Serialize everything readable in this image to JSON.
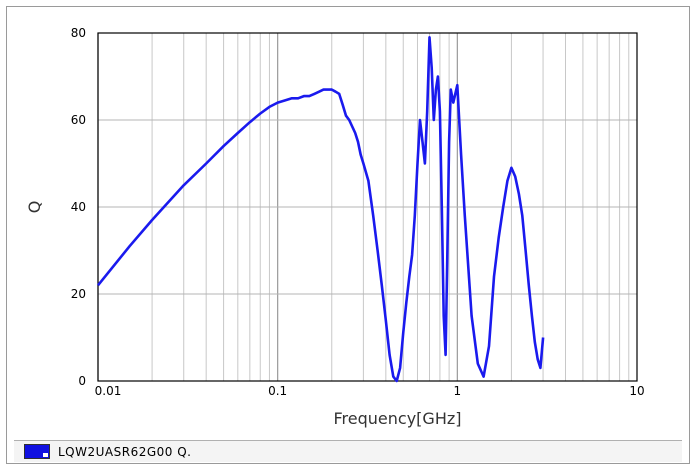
{
  "chart_data": {
    "type": "line",
    "xscale": "log",
    "xlim": [
      0.01,
      10
    ],
    "ylim": [
      0,
      80
    ],
    "xlabel": "Frequency[GHz]",
    "ylabel": "Q",
    "xticks": [
      {
        "value": 0.01,
        "label": "0.01"
      },
      {
        "value": 0.1,
        "label": "0.1"
      },
      {
        "value": 1,
        "label": "1"
      },
      {
        "value": 10,
        "label": "10"
      }
    ],
    "yticks": [
      {
        "value": 0,
        "label": "0"
      },
      {
        "value": 20,
        "label": "20"
      },
      {
        "value": 40,
        "label": "40"
      },
      {
        "value": 60,
        "label": "60"
      },
      {
        "value": 80,
        "label": "80"
      }
    ],
    "grid": true,
    "legend_position": "bottom",
    "series": [
      {
        "name": "LQW2UASR62G00  Q.",
        "color": "#1a1aee",
        "x": [
          0.01,
          0.015,
          0.02,
          0.03,
          0.04,
          0.05,
          0.06,
          0.07,
          0.08,
          0.09,
          0.1,
          0.11,
          0.12,
          0.13,
          0.14,
          0.15,
          0.16,
          0.17,
          0.18,
          0.19,
          0.2,
          0.21,
          0.22,
          0.23,
          0.24,
          0.25,
          0.26,
          0.27,
          0.28,
          0.29,
          0.3,
          0.32,
          0.34,
          0.36,
          0.38,
          0.4,
          0.42,
          0.44,
          0.46,
          0.48,
          0.5,
          0.52,
          0.54,
          0.56,
          0.58,
          0.6,
          0.62,
          0.64,
          0.66,
          0.68,
          0.7,
          0.72,
          0.74,
          0.76,
          0.78,
          0.8,
          0.82,
          0.84,
          0.86,
          0.88,
          0.9,
          0.92,
          0.95,
          1.0,
          1.05,
          1.1,
          1.2,
          1.3,
          1.4,
          1.5,
          1.6,
          1.7,
          1.8,
          1.9,
          2.0,
          2.1,
          2.2,
          2.3,
          2.4,
          2.5,
          2.6,
          2.7,
          2.8,
          2.9,
          3.0
        ],
        "values": [
          22,
          31,
          37,
          45,
          50,
          54,
          57,
          59.5,
          61.5,
          63,
          64,
          64.5,
          65,
          65,
          65.5,
          65.5,
          66,
          66.5,
          67,
          67,
          67,
          66.5,
          66,
          63.5,
          61,
          60,
          58.5,
          57,
          55,
          52,
          50,
          46,
          38,
          30,
          22,
          14,
          6,
          1,
          0,
          3,
          11,
          18,
          24,
          29,
          38,
          50,
          60,
          55,
          50,
          62,
          79,
          72,
          60,
          67,
          70,
          62,
          40,
          15,
          6,
          30,
          55,
          67,
          64,
          68,
          52,
          38,
          15,
          4,
          1,
          8,
          24,
          33,
          40,
          46,
          49,
          47,
          43,
          38,
          30,
          22,
          15,
          9,
          5,
          3,
          10
        ]
      }
    ]
  }
}
